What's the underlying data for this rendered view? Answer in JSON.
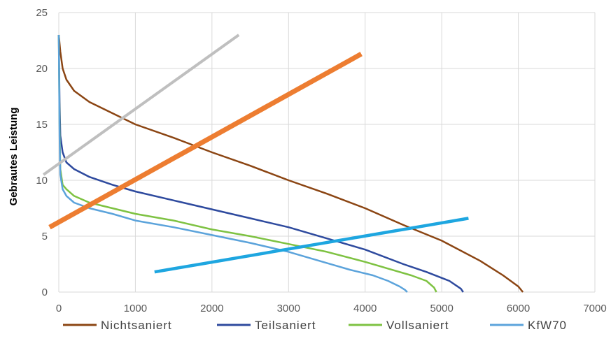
{
  "chart_data": {
    "type": "line",
    "ylabel": "Gebrautes Leistung",
    "xlabel": "",
    "title": "",
    "xlim": [
      0,
      7000
    ],
    "ylim": [
      0,
      25
    ],
    "x_ticks": [
      0,
      1000,
      2000,
      3000,
      4000,
      5000,
      6000,
      7000
    ],
    "y_ticks": [
      0,
      5,
      10,
      15,
      20,
      25
    ],
    "grid": true,
    "legend_position": "bottom",
    "series": [
      {
        "name": "Nichtsaniert",
        "color": "#8b4513",
        "x": [
          0,
          20,
          50,
          100,
          200,
          400,
          700,
          1000,
          1500,
          2000,
          2500,
          3000,
          3500,
          4000,
          4500,
          5000,
          5500,
          5800,
          6000,
          6060
        ],
        "y": [
          23,
          21.5,
          20,
          19,
          18,
          17,
          16,
          15,
          13.8,
          12.5,
          11.3,
          10,
          8.8,
          7.5,
          6,
          4.6,
          2.8,
          1.5,
          0.5,
          0
        ]
      },
      {
        "name": "Teilsaniert",
        "color": "#2e4a9e",
        "x": [
          0,
          10,
          20,
          50,
          100,
          200,
          400,
          700,
          1000,
          1500,
          2000,
          2500,
          3000,
          3500,
          4000,
          4500,
          4800,
          5100,
          5250,
          5280
        ],
        "y": [
          23,
          17,
          14,
          12.5,
          11.6,
          11,
          10.3,
          9.6,
          9,
          8.2,
          7.4,
          6.6,
          5.8,
          4.8,
          3.8,
          2.5,
          1.8,
          1,
          0.3,
          0
        ]
      },
      {
        "name": "Vollsaniert",
        "color": "#7ec242",
        "x": [
          0,
          10,
          20,
          50,
          100,
          200,
          400,
          700,
          1000,
          1500,
          2000,
          2500,
          3000,
          3500,
          4000,
          4300,
          4600,
          4800,
          4900,
          4930
        ],
        "y": [
          23,
          15,
          11,
          9.6,
          9.2,
          8.6,
          8,
          7.5,
          7,
          6.4,
          5.6,
          5,
          4.3,
          3.6,
          2.7,
          2.1,
          1.5,
          1,
          0.4,
          0
        ]
      },
      {
        "name": "KfW70",
        "color": "#5ba3db",
        "x": [
          0,
          10,
          20,
          50,
          100,
          200,
          400,
          700,
          1000,
          1500,
          2000,
          2500,
          3000,
          3500,
          3800,
          4100,
          4300,
          4450,
          4520,
          4550
        ],
        "y": [
          23,
          14,
          10.5,
          9.2,
          8.6,
          8,
          7.5,
          7,
          6.4,
          5.8,
          5.1,
          4.4,
          3.6,
          2.6,
          2,
          1.5,
          1,
          0.5,
          0.2,
          0
        ]
      },
      {
        "color": "#bfbfbf",
        "x": [
          -200,
          2350
        ],
        "y": [
          10.5,
          23
        ]
      },
      {
        "color": "#ed7d31",
        "x": [
          -120,
          3950
        ],
        "y": [
          5.8,
          21.3
        ]
      },
      {
        "color": "#1ea6e0",
        "x": [
          1250,
          5350
        ],
        "y": [
          1.8,
          6.6
        ]
      }
    ]
  }
}
